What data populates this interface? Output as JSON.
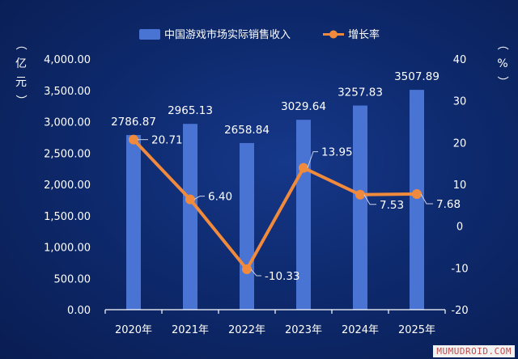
{
  "chart_data": {
    "type": "bar",
    "categories": [
      "2020年",
      "2021年",
      "2022年",
      "2023年",
      "2024年",
      "2025年"
    ],
    "series": [
      {
        "name": "中国游戏市场实际销售收入",
        "type": "bar",
        "axis": "left",
        "values": [
          2786.87,
          2965.13,
          2658.84,
          3029.64,
          3257.83,
          3507.89
        ],
        "labels": [
          "2786.87",
          "2965.13",
          "2658.84",
          "3029.64",
          "3257.83",
          "3507.89"
        ],
        "color": "#4a74d4"
      },
      {
        "name": "增长率",
        "type": "line",
        "axis": "right",
        "values": [
          20.71,
          6.4,
          -10.33,
          13.95,
          7.53,
          7.68
        ],
        "labels": [
          "20.71",
          "6.40",
          "-10.33",
          "13.95",
          "7.53",
          "7.68"
        ],
        "color": "#f08a3c"
      }
    ],
    "y_left": {
      "label": "（亿元）",
      "ylim": [
        0,
        4000
      ],
      "ticks": [
        0,
        500,
        1000,
        1500,
        2000,
        2500,
        3000,
        3500,
        4000
      ],
      "tick_labels": [
        "0.00",
        "500.00",
        "1,000.00",
        "1,500.00",
        "2,000.00",
        "2,500.00",
        "3,000.00",
        "3,500.00",
        "4,000.00"
      ]
    },
    "y_right": {
      "label": "（%）",
      "ylim": [
        -20,
        40
      ],
      "ticks": [
        -20,
        -10,
        0,
        10,
        20,
        30,
        40
      ],
      "tick_labels": [
        "-20",
        "-10",
        "0",
        "10",
        "20",
        "30",
        "40"
      ]
    },
    "legend": {
      "position": "top-center"
    },
    "grid": false
  },
  "watermark": "MUMUDROID.COM"
}
